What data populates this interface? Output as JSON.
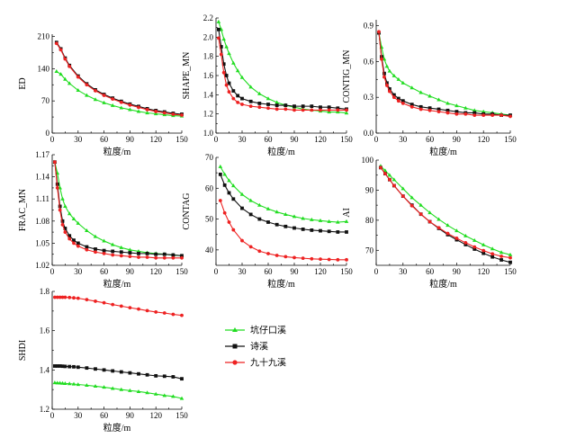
{
  "figure": {
    "legend": [
      {
        "label": "坑仔口溪",
        "color": "#22dd22",
        "marker": "triangle"
      },
      {
        "label": "诗溪",
        "color": "#111111",
        "marker": "square"
      },
      {
        "label": "九十九溪",
        "color": "#ee2222",
        "marker": "circle"
      }
    ]
  },
  "chart_data": [
    {
      "type": "line",
      "ylabel": "ED",
      "xlabel": "粒度/m",
      "xlim": [
        0,
        150
      ],
      "ylim": [
        0,
        215
      ],
      "xticks": [
        0,
        30,
        60,
        90,
        120,
        150
      ],
      "yticks": [
        0,
        70,
        140,
        210
      ],
      "x": [
        5,
        10,
        15,
        20,
        30,
        40,
        50,
        60,
        70,
        80,
        90,
        100,
        110,
        120,
        130,
        140,
        150
      ],
      "series": [
        {
          "name": "坑仔口溪",
          "color": "#22dd22",
          "marker": "triangle",
          "values": [
            134,
            128,
            117,
            108,
            93,
            82,
            73,
            66,
            60,
            55,
            51,
            47,
            44,
            42,
            40,
            38,
            37
          ]
        },
        {
          "name": "诗溪",
          "color": "#111111",
          "marker": "square",
          "values": [
            197,
            183,
            163,
            147,
            124,
            107,
            94,
            84,
            76,
            69,
            63,
            58,
            53,
            49,
            46,
            43,
            41
          ]
        },
        {
          "name": "九十九溪",
          "color": "#ee2222",
          "marker": "circle",
          "values": [
            195,
            181,
            161,
            145,
            122,
            105,
            92,
            82,
            74,
            67,
            61,
            56,
            51,
            47,
            44,
            41,
            39
          ]
        }
      ]
    },
    {
      "type": "line",
      "ylabel": "SHAPE_MN",
      "xlabel": "粒度/m",
      "xlim": [
        0,
        150
      ],
      "ylim": [
        1.0,
        2.2
      ],
      "xticks": [
        0,
        30,
        60,
        90,
        120,
        150
      ],
      "yticks": [
        1.0,
        1.2,
        1.4,
        1.6,
        1.8,
        2.0,
        2.2
      ],
      "x": [
        3,
        6,
        9,
        12,
        15,
        20,
        25,
        30,
        40,
        50,
        60,
        70,
        80,
        90,
        100,
        110,
        120,
        130,
        140,
        150
      ],
      "series": [
        {
          "name": "坑仔口溪",
          "color": "#22dd22",
          "marker": "triangle",
          "values": [
            2.16,
            2.08,
            1.98,
            1.9,
            1.83,
            1.73,
            1.65,
            1.58,
            1.48,
            1.41,
            1.36,
            1.32,
            1.29,
            1.27,
            1.25,
            1.24,
            1.23,
            1.22,
            1.22,
            1.21
          ]
        },
        {
          "name": "诗溪",
          "color": "#111111",
          "marker": "square",
          "values": [
            2.08,
            1.9,
            1.72,
            1.6,
            1.52,
            1.44,
            1.39,
            1.36,
            1.33,
            1.31,
            1.3,
            1.29,
            1.29,
            1.28,
            1.28,
            1.28,
            1.27,
            1.27,
            1.26,
            1.25
          ]
        },
        {
          "name": "九十九溪",
          "color": "#ee2222",
          "marker": "circle",
          "values": [
            1.99,
            1.82,
            1.63,
            1.5,
            1.43,
            1.36,
            1.32,
            1.3,
            1.28,
            1.27,
            1.26,
            1.25,
            1.25,
            1.24,
            1.24,
            1.24,
            1.24,
            1.24,
            1.24,
            1.24
          ]
        }
      ]
    },
    {
      "type": "line",
      "ylabel": "CONTIG_MN",
      "xlabel": "粒度/m",
      "xlim": [
        0,
        150
      ],
      "ylim": [
        0,
        0.95
      ],
      "xticks": [
        0,
        30,
        60,
        90,
        120,
        150
      ],
      "yticks": [
        0.0,
        0.3,
        0.6,
        0.9
      ],
      "x": [
        3,
        6,
        9,
        12,
        15,
        20,
        25,
        30,
        40,
        50,
        60,
        70,
        80,
        90,
        100,
        110,
        120,
        130,
        140,
        150
      ],
      "series": [
        {
          "name": "坑仔口溪",
          "color": "#22dd22",
          "marker": "triangle",
          "values": [
            0.84,
            0.72,
            0.62,
            0.56,
            0.52,
            0.48,
            0.45,
            0.42,
            0.38,
            0.34,
            0.31,
            0.28,
            0.25,
            0.23,
            0.21,
            0.19,
            0.18,
            0.17,
            0.16,
            0.15
          ]
        },
        {
          "name": "诗溪",
          "color": "#111111",
          "marker": "square",
          "values": [
            0.84,
            0.64,
            0.5,
            0.42,
            0.37,
            0.32,
            0.29,
            0.27,
            0.24,
            0.22,
            0.21,
            0.2,
            0.19,
            0.18,
            0.17,
            0.17,
            0.16,
            0.16,
            0.15,
            0.15
          ]
        },
        {
          "name": "九十九溪",
          "color": "#ee2222",
          "marker": "circle",
          "values": [
            0.85,
            0.62,
            0.47,
            0.4,
            0.35,
            0.3,
            0.27,
            0.25,
            0.22,
            0.2,
            0.19,
            0.18,
            0.17,
            0.16,
            0.16,
            0.15,
            0.15,
            0.15,
            0.15,
            0.14
          ]
        }
      ]
    },
    {
      "type": "line",
      "ylabel": "FRAC_MN",
      "xlabel": "粒度/m",
      "xlim": [
        0,
        150
      ],
      "ylim": [
        1.02,
        1.17
      ],
      "xticks": [
        0,
        30,
        60,
        90,
        120,
        150
      ],
      "yticks": [
        1.02,
        1.05,
        1.08,
        1.11,
        1.14,
        1.17
      ],
      "x": [
        3,
        6,
        9,
        12,
        15,
        20,
        25,
        30,
        40,
        50,
        60,
        70,
        80,
        90,
        100,
        110,
        120,
        130,
        140,
        150
      ],
      "series": [
        {
          "name": "坑仔口溪",
          "color": "#22dd22",
          "marker": "triangle",
          "values": [
            1.16,
            1.145,
            1.125,
            1.11,
            1.1,
            1.09,
            1.083,
            1.077,
            1.067,
            1.059,
            1.053,
            1.048,
            1.044,
            1.041,
            1.039,
            1.037,
            1.036,
            1.035,
            1.034,
            1.033
          ]
        },
        {
          "name": "诗溪",
          "color": "#111111",
          "marker": "square",
          "values": [
            1.16,
            1.13,
            1.1,
            1.08,
            1.07,
            1.06,
            1.054,
            1.05,
            1.045,
            1.042,
            1.04,
            1.039,
            1.038,
            1.037,
            1.036,
            1.036,
            1.035,
            1.035,
            1.034,
            1.033
          ]
        },
        {
          "name": "九十九溪",
          "color": "#ee2222",
          "marker": "circle",
          "values": [
            1.16,
            1.125,
            1.095,
            1.075,
            1.065,
            1.056,
            1.05,
            1.046,
            1.041,
            1.038,
            1.036,
            1.034,
            1.033,
            1.032,
            1.031,
            1.031,
            1.03,
            1.03,
            1.03,
            1.03
          ]
        }
      ]
    },
    {
      "type": "line",
      "ylabel": "CONTAG",
      "xlabel": "粒度/m",
      "xlim": [
        0,
        150
      ],
      "ylim": [
        35,
        70
      ],
      "xticks": [
        0,
        30,
        60,
        90,
        120,
        150
      ],
      "yticks": [
        40,
        50,
        60,
        70
      ],
      "x": [
        5,
        10,
        15,
        20,
        30,
        40,
        50,
        60,
        70,
        80,
        90,
        100,
        110,
        120,
        130,
        140,
        150
      ],
      "series": [
        {
          "name": "坑仔口溪",
          "color": "#22dd22",
          "marker": "triangle",
          "values": [
            67,
            64.5,
            62.5,
            60.8,
            58,
            56,
            54.5,
            53.3,
            52.3,
            51.5,
            50.8,
            50.2,
            49.8,
            49.5,
            49.2,
            49,
            49.2
          ]
        },
        {
          "name": "诗溪",
          "color": "#111111",
          "marker": "square",
          "values": [
            64.5,
            61,
            58.5,
            56.5,
            53.5,
            51.5,
            50,
            49,
            48.2,
            47.6,
            47.1,
            46.7,
            46.4,
            46.2,
            46,
            45.8,
            45.8
          ]
        },
        {
          "name": "九十九溪",
          "color": "#ee2222",
          "marker": "circle",
          "values": [
            56,
            52,
            49,
            46.5,
            43,
            41,
            39.6,
            38.8,
            38.2,
            37.8,
            37.5,
            37.3,
            37.1,
            37,
            36.9,
            36.8,
            36.8
          ]
        }
      ]
    },
    {
      "type": "line",
      "ylabel": "AI",
      "xlabel": "粒度/m",
      "xlim": [
        0,
        150
      ],
      "ylim": [
        65,
        100
      ],
      "xticks": [
        0,
        30,
        60,
        90,
        120,
        150
      ],
      "yticks": [
        70,
        80,
        90,
        100
      ],
      "x": [
        5,
        10,
        15,
        20,
        30,
        40,
        50,
        60,
        70,
        80,
        90,
        100,
        110,
        120,
        130,
        140,
        150
      ],
      "series": [
        {
          "name": "坑仔口溪",
          "color": "#22dd22",
          "marker": "triangle",
          "values": [
            98,
            96.5,
            95,
            93.5,
            90.5,
            87.5,
            85,
            82.5,
            80.3,
            78.3,
            76.5,
            74.8,
            73.3,
            71.8,
            70.5,
            69.3,
            68.5
          ]
        },
        {
          "name": "诗溪",
          "color": "#111111",
          "marker": "square",
          "values": [
            97.5,
            95.5,
            93.5,
            91.5,
            88,
            85,
            82,
            79.5,
            77.3,
            75.2,
            73.5,
            71.9,
            70.4,
            69,
            67.8,
            66.8,
            66
          ]
        },
        {
          "name": "九十九溪",
          "color": "#ee2222",
          "marker": "circle",
          "values": [
            97.5,
            95.5,
            93.5,
            91.5,
            88,
            84.8,
            82,
            79.5,
            77.5,
            75.6,
            74,
            72.5,
            71.1,
            69.9,
            68.8,
            68,
            67.5
          ]
        }
      ]
    },
    {
      "type": "line",
      "ylabel": "SHDI",
      "xlabel": "粒度/m",
      "xlim": [
        0,
        150
      ],
      "ylim": [
        1.2,
        1.8
      ],
      "xticks": [
        0,
        30,
        60,
        90,
        120,
        150
      ],
      "yticks": [
        1.2,
        1.4,
        1.6,
        1.8
      ],
      "x": [
        3,
        6,
        9,
        12,
        15,
        20,
        25,
        30,
        40,
        50,
        60,
        70,
        80,
        90,
        100,
        110,
        120,
        130,
        140,
        150
      ],
      "series": [
        {
          "name": "坑仔口溪",
          "color": "#22dd22",
          "marker": "triangle",
          "values": [
            1.335,
            1.334,
            1.333,
            1.332,
            1.331,
            1.33,
            1.328,
            1.326,
            1.322,
            1.317,
            1.312,
            1.306,
            1.3,
            1.295,
            1.29,
            1.284,
            1.277,
            1.27,
            1.265,
            1.255
          ]
        },
        {
          "name": "诗溪",
          "color": "#111111",
          "marker": "square",
          "values": [
            1.42,
            1.42,
            1.42,
            1.419,
            1.418,
            1.417,
            1.416,
            1.414,
            1.41,
            1.405,
            1.4,
            1.395,
            1.39,
            1.385,
            1.38,
            1.375,
            1.37,
            1.368,
            1.365,
            1.355
          ]
        },
        {
          "name": "九十九溪",
          "color": "#ee2222",
          "marker": "circle",
          "values": [
            1.77,
            1.77,
            1.77,
            1.77,
            1.77,
            1.769,
            1.767,
            1.765,
            1.758,
            1.75,
            1.742,
            1.733,
            1.725,
            1.717,
            1.71,
            1.702,
            1.695,
            1.69,
            1.683,
            1.678
          ]
        }
      ]
    }
  ]
}
